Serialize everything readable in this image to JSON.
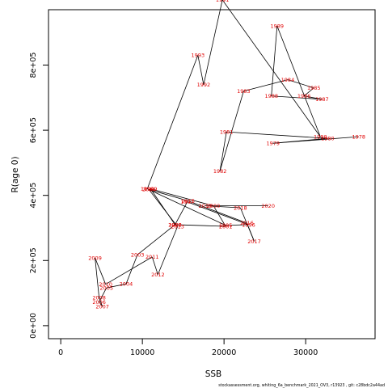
{
  "chart_data": {
    "type": "line",
    "xlabel": "SSB",
    "ylabel": "R(age 0)",
    "xlim": [
      -1500,
      38500
    ],
    "ylim": [
      -40000,
      970000
    ],
    "x_ticks": [
      0,
      10000,
      20000,
      30000
    ],
    "x_tick_labels": [
      "0",
      "10000",
      "20000",
      "30000"
    ],
    "y_ticks": [
      0,
      200000,
      400000,
      600000,
      800000
    ],
    "y_tick_labels": [
      "0e+00",
      "2e+05",
      "4e+05",
      "6e+05",
      "8e+05"
    ],
    "grid": false,
    "point_label_color": "#e00000",
    "line_color": "#000000",
    "points": [
      {
        "year": "1978",
        "x": 36500,
        "y": 580000
      },
      {
        "year": "1979",
        "x": 26000,
        "y": 560000
      },
      {
        "year": "1980",
        "x": 32700,
        "y": 575000
      },
      {
        "year": "1981",
        "x": 20300,
        "y": 595000
      },
      {
        "year": "1982",
        "x": 19500,
        "y": 475000
      },
      {
        "year": "1983",
        "x": 22400,
        "y": 720000
      },
      {
        "year": "1984",
        "x": 27800,
        "y": 755000
      },
      {
        "year": "1985",
        "x": 31000,
        "y": 730000
      },
      {
        "year": "1986",
        "x": 29800,
        "y": 705000
      },
      {
        "year": "1987",
        "x": 32000,
        "y": 695000
      },
      {
        "year": "1988",
        "x": 25800,
        "y": 705000
      },
      {
        "year": "1989",
        "x": 26500,
        "y": 920000
      },
      {
        "year": "1990",
        "x": 31800,
        "y": 580000
      },
      {
        "year": "1991",
        "x": 19800,
        "y": 1000000
      },
      {
        "year": "1992",
        "x": 17500,
        "y": 740000
      },
      {
        "year": "1993",
        "x": 16800,
        "y": 830000
      },
      {
        "year": "1994",
        "x": 10600,
        "y": 420000
      },
      {
        "year": "1995",
        "x": 20200,
        "y": 308000
      },
      {
        "year": "1996",
        "x": 23000,
        "y": 310000
      },
      {
        "year": "1997",
        "x": 15500,
        "y": 380000
      },
      {
        "year": "1998",
        "x": 14000,
        "y": 310000
      },
      {
        "year": "1999",
        "x": 11000,
        "y": 420000
      },
      {
        "year": "2000",
        "x": 18700,
        "y": 368000
      },
      {
        "year": "2001",
        "x": 20200,
        "y": 305000
      },
      {
        "year": "2002",
        "x": 14000,
        "y": 310000
      },
      {
        "year": "2003",
        "x": 9400,
        "y": 218000
      },
      {
        "year": "2004",
        "x": 8000,
        "y": 128000
      },
      {
        "year": "2005",
        "x": 5600,
        "y": 116000
      },
      {
        "year": "2006",
        "x": 4700,
        "y": 73000
      },
      {
        "year": "2007",
        "x": 5100,
        "y": 59000
      },
      {
        "year": "2008",
        "x": 4700,
        "y": 86000
      },
      {
        "year": "2009",
        "x": 4200,
        "y": 208000
      },
      {
        "year": "2010",
        "x": 5500,
        "y": 127000
      },
      {
        "year": "2011",
        "x": 11200,
        "y": 211000
      },
      {
        "year": "2012",
        "x": 11900,
        "y": 157000
      },
      {
        "year": "2013",
        "x": 14300,
        "y": 304000
      },
      {
        "year": "2014",
        "x": 10800,
        "y": 418000
      },
      {
        "year": "2015",
        "x": 15600,
        "y": 383000
      },
      {
        "year": "2016",
        "x": 22800,
        "y": 315000
      },
      {
        "year": "2017",
        "x": 23700,
        "y": 259000
      },
      {
        "year": "2018",
        "x": 22000,
        "y": 362000
      },
      {
        "year": "2019",
        "x": 17700,
        "y": 368000
      },
      {
        "year": "2020",
        "x": 25400,
        "y": 368000
      }
    ]
  },
  "caption": "stockassessment.org,  whiting_6a_benchmark_2021_OV3,  r13923 ,  git: c28bdc2a44ad"
}
